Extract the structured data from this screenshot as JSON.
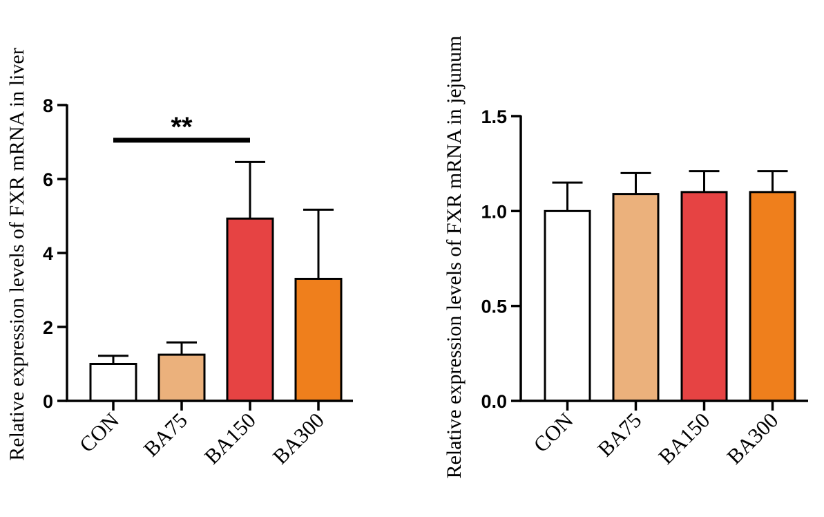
{
  "chart_data": [
    {
      "type": "bar",
      "title": "",
      "xlabel": "",
      "ylabel": "Relative expression levels of FXR mRNA in liver",
      "categories": [
        "CON",
        "BA75",
        "BA150",
        "BA300"
      ],
      "values": [
        1.0,
        1.25,
        4.93,
        3.3
      ],
      "errors": [
        0.22,
        0.33,
        1.53,
        1.87
      ],
      "colors": [
        "#ffffff",
        "#ebb17c",
        "#e64343",
        "#ef7f1c"
      ],
      "ylim": [
        0,
        8
      ],
      "yticks": [
        "0",
        "2",
        "4",
        "6",
        "8"
      ],
      "significance": {
        "from": 0,
        "to": 2,
        "label": "**"
      }
    },
    {
      "type": "bar",
      "title": "",
      "xlabel": "",
      "ylabel": "Relative expression levels of FXR mRNA in jejunum",
      "categories": [
        "CON",
        "BA75",
        "BA150",
        "BA300"
      ],
      "values": [
        1.0,
        1.09,
        1.1,
        1.1
      ],
      "errors": [
        0.15,
        0.11,
        0.11,
        0.11
      ],
      "colors": [
        "#ffffff",
        "#ebb17c",
        "#e64343",
        "#ef7f1c"
      ],
      "ylim": [
        0,
        1.5
      ],
      "yticks": [
        "0.0",
        "0.5",
        "1.0",
        "1.5"
      ]
    }
  ]
}
